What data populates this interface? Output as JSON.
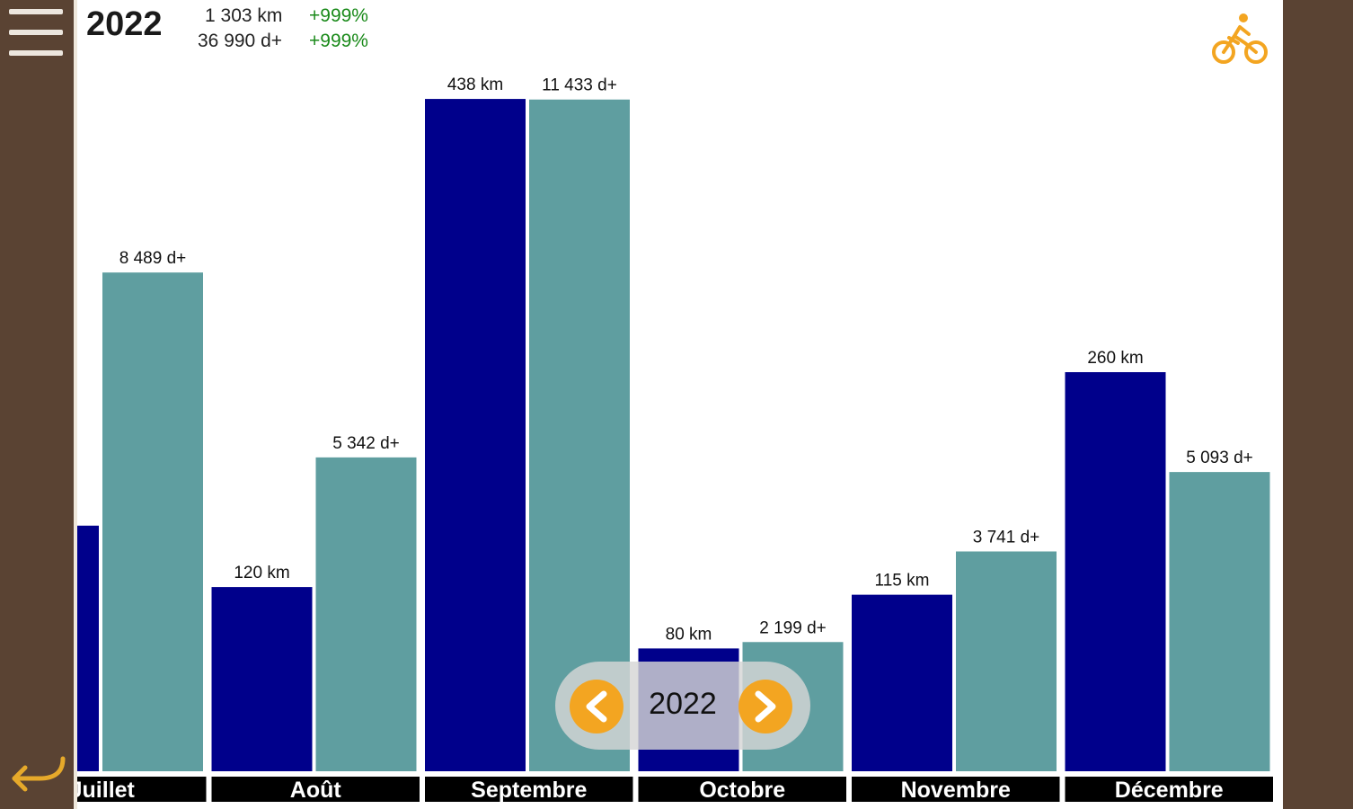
{
  "header": {
    "year": "2022",
    "distance_total": "1 303 km",
    "distance_change": "+999%",
    "elevation_total": "36 990 d+",
    "elevation_change": "+999%"
  },
  "year_nav": {
    "year": "2022"
  },
  "icons": {
    "menu": "menu-icon",
    "back": "back-arrow-icon",
    "activity": "bicycle-icon",
    "prev": "chevron-left-icon",
    "next": "chevron-right-icon"
  },
  "colors": {
    "distance_bar": "#00008b",
    "elevation_bar": "#5f9ea0",
    "accent": "#f3a521",
    "frame": "#5a4333",
    "month_label_bg": "#000000"
  },
  "chart_data": {
    "type": "bar",
    "categories": [
      "Juillet",
      "Août",
      "Septembre",
      "Octobre",
      "Novembre",
      "Décembre"
    ],
    "series": [
      {
        "values": [
          160,
          120,
          438,
          80,
          115,
          260
        ],
        "labels": [
          "",
          "120 km",
          "438 km",
          "80 km",
          "115 km",
          "260 km"
        ]
      },
      {
        "values": [
          8489,
          5342,
          11433,
          2199,
          3741,
          5093
        ],
        "labels": [
          "8 489 d+",
          "5 342 d+",
          "11 433 d+",
          "2 199 d+",
          "3 741 d+",
          "5 093 d+"
        ]
      }
    ]
  }
}
